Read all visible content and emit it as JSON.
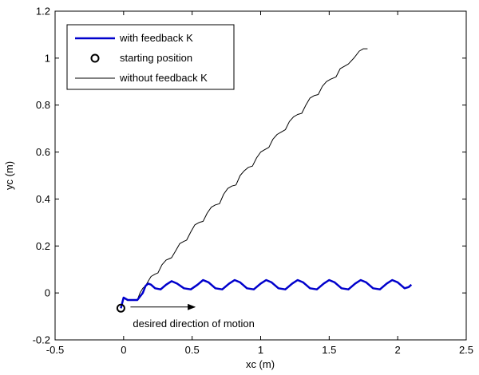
{
  "chart_data": {
    "type": "line",
    "xlabel": "xc (m)",
    "ylabel": "yc (m)",
    "xlim": [
      -0.5,
      2.5
    ],
    "ylim": [
      -0.2,
      1.2
    ],
    "xticks": [
      -0.5,
      0,
      0.5,
      1,
      1.5,
      2,
      2.5
    ],
    "yticks": [
      -0.2,
      0,
      0.2,
      0.4,
      0.6,
      0.8,
      1,
      1.2
    ],
    "xtick_labels": [
      "-0.5",
      "0",
      "0.5",
      "1",
      "1.5",
      "2",
      "2.5"
    ],
    "ytick_labels": [
      "-0.2",
      "0",
      "0.2",
      "0.4",
      "0.6",
      "0.8",
      "1",
      "1.2"
    ],
    "grid": false,
    "legend_position": "top-left",
    "series": [
      {
        "name": "with feedback K",
        "color": "#0000cc",
        "style": "solid-thick",
        "points": [
          [
            -0.02,
            -0.065
          ],
          [
            0.0,
            -0.02
          ],
          [
            0.03,
            -0.03
          ],
          [
            0.07,
            -0.03
          ],
          [
            0.1,
            -0.03
          ],
          [
            0.14,
            0.0
          ],
          [
            0.16,
            0.03
          ],
          [
            0.18,
            0.04
          ],
          [
            0.2,
            0.035
          ],
          [
            0.23,
            0.02
          ],
          [
            0.27,
            0.015
          ],
          [
            0.31,
            0.035
          ],
          [
            0.35,
            0.05
          ],
          [
            0.39,
            0.04
          ],
          [
            0.44,
            0.02
          ],
          [
            0.49,
            0.015
          ],
          [
            0.54,
            0.035
          ],
          [
            0.58,
            0.055
          ],
          [
            0.62,
            0.045
          ],
          [
            0.67,
            0.02
          ],
          [
            0.72,
            0.015
          ],
          [
            0.77,
            0.04
          ],
          [
            0.81,
            0.055
          ],
          [
            0.85,
            0.045
          ],
          [
            0.9,
            0.02
          ],
          [
            0.95,
            0.015
          ],
          [
            1.0,
            0.04
          ],
          [
            1.04,
            0.055
          ],
          [
            1.08,
            0.045
          ],
          [
            1.13,
            0.02
          ],
          [
            1.18,
            0.015
          ],
          [
            1.23,
            0.04
          ],
          [
            1.27,
            0.055
          ],
          [
            1.31,
            0.045
          ],
          [
            1.36,
            0.02
          ],
          [
            1.41,
            0.015
          ],
          [
            1.46,
            0.04
          ],
          [
            1.5,
            0.055
          ],
          [
            1.54,
            0.045
          ],
          [
            1.59,
            0.02
          ],
          [
            1.64,
            0.015
          ],
          [
            1.69,
            0.04
          ],
          [
            1.73,
            0.055
          ],
          [
            1.77,
            0.045
          ],
          [
            1.82,
            0.02
          ],
          [
            1.87,
            0.015
          ],
          [
            1.92,
            0.04
          ],
          [
            1.96,
            0.055
          ],
          [
            2.0,
            0.045
          ],
          [
            2.05,
            0.02
          ],
          [
            2.08,
            0.025
          ],
          [
            2.1,
            0.035
          ]
        ]
      },
      {
        "name": "without feedback K",
        "color": "#000000",
        "style": "solid-thin",
        "points": [
          [
            -0.02,
            -0.065
          ],
          [
            0.0,
            -0.02
          ],
          [
            0.03,
            -0.03
          ],
          [
            0.07,
            -0.03
          ],
          [
            0.1,
            -0.03
          ],
          [
            0.12,
            0.0
          ],
          [
            0.14,
            0.02
          ],
          [
            0.16,
            0.03
          ],
          [
            0.18,
            0.05
          ],
          [
            0.2,
            0.07
          ],
          [
            0.23,
            0.08
          ],
          [
            0.25,
            0.085
          ],
          [
            0.28,
            0.12
          ],
          [
            0.31,
            0.14
          ],
          [
            0.33,
            0.145
          ],
          [
            0.35,
            0.15
          ],
          [
            0.38,
            0.18
          ],
          [
            0.41,
            0.21
          ],
          [
            0.44,
            0.22
          ],
          [
            0.46,
            0.225
          ],
          [
            0.49,
            0.26
          ],
          [
            0.52,
            0.29
          ],
          [
            0.55,
            0.3
          ],
          [
            0.58,
            0.305
          ],
          [
            0.61,
            0.34
          ],
          [
            0.64,
            0.365
          ],
          [
            0.67,
            0.375
          ],
          [
            0.7,
            0.38
          ],
          [
            0.73,
            0.42
          ],
          [
            0.76,
            0.445
          ],
          [
            0.79,
            0.455
          ],
          [
            0.82,
            0.46
          ],
          [
            0.85,
            0.5
          ],
          [
            0.88,
            0.52
          ],
          [
            0.91,
            0.535
          ],
          [
            0.94,
            0.54
          ],
          [
            0.97,
            0.575
          ],
          [
            1.0,
            0.6
          ],
          [
            1.03,
            0.61
          ],
          [
            1.06,
            0.62
          ],
          [
            1.09,
            0.655
          ],
          [
            1.12,
            0.675
          ],
          [
            1.15,
            0.685
          ],
          [
            1.18,
            0.695
          ],
          [
            1.21,
            0.73
          ],
          [
            1.24,
            0.75
          ],
          [
            1.27,
            0.76
          ],
          [
            1.3,
            0.765
          ],
          [
            1.33,
            0.8
          ],
          [
            1.36,
            0.83
          ],
          [
            1.39,
            0.84
          ],
          [
            1.42,
            0.845
          ],
          [
            1.45,
            0.88
          ],
          [
            1.48,
            0.9
          ],
          [
            1.51,
            0.91
          ],
          [
            1.55,
            0.92
          ],
          [
            1.58,
            0.955
          ],
          [
            1.61,
            0.965
          ],
          [
            1.64,
            0.975
          ],
          [
            1.68,
            1.0
          ],
          [
            1.72,
            1.03
          ],
          [
            1.75,
            1.04
          ],
          [
            1.78,
            1.04
          ]
        ]
      }
    ],
    "markers": [
      {
        "name": "starting position",
        "x": -0.02,
        "y": -0.065,
        "shape": "circle"
      }
    ],
    "annotations": [
      {
        "text": "desired direction of motion",
        "arrow_from": [
          0.05,
          -0.06
        ],
        "arrow_to": [
          0.52,
          -0.06
        ]
      }
    ]
  }
}
